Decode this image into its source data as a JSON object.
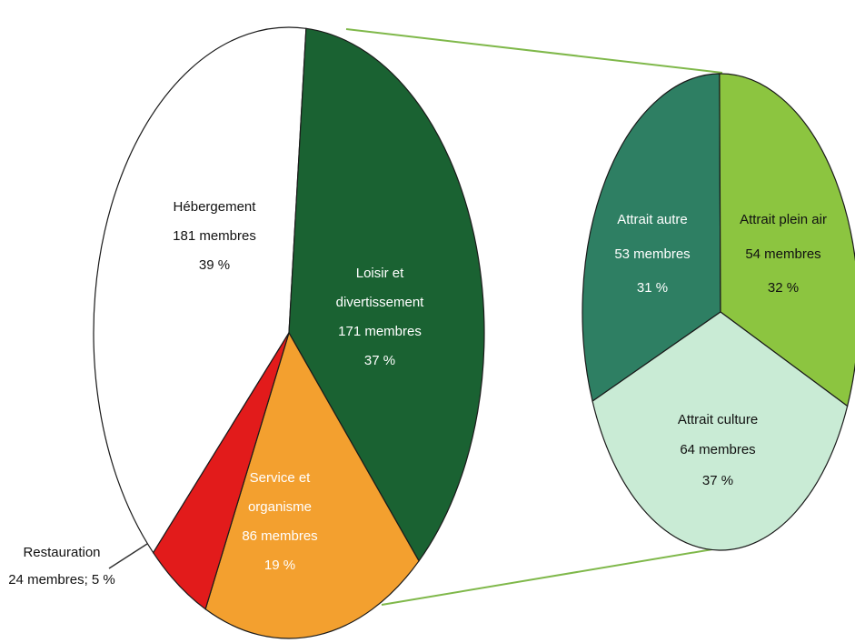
{
  "chart_data": [
    {
      "type": "pie",
      "title": "",
      "slices": [
        {
          "label": "Hébergement",
          "members": "181 membres",
          "percent": "39 %",
          "value": 181,
          "color": "#ffffff",
          "text_color": "#111111"
        },
        {
          "label": "Loisir et divertissement",
          "members": "171 membres",
          "percent": "37 %",
          "value": 171,
          "color": "#1a6232",
          "text_color": "#ffffff"
        },
        {
          "label": "Service et organisme",
          "members": "86 membres",
          "percent": "19 %",
          "value": 86,
          "color": "#f3a02f",
          "text_color": "#ffffff"
        },
        {
          "label": "Restauration",
          "members": "24 membres; 5 %",
          "percent": "5 %",
          "value": 24,
          "color": "#e21b1b",
          "text_color": "#111111"
        }
      ]
    },
    {
      "type": "pie",
      "title": "",
      "breakdown_of": "Loisir et divertissement",
      "slices": [
        {
          "label": "Attrait autre",
          "members": "53 membres",
          "percent": "31 %",
          "value": 53,
          "color": "#2e7f63",
          "text_color": "#ffffff"
        },
        {
          "label": "Attrait plein air",
          "members": "54 membres",
          "percent": "32 %",
          "value": 54,
          "color": "#8cc540",
          "text_color": "#111111"
        },
        {
          "label": "Attrait culture",
          "members": "64 membres",
          "percent": "37 %",
          "value": 64,
          "color": "#c9ebd5",
          "text_color": "#111111"
        }
      ]
    }
  ],
  "connector_color": "#7fb84a",
  "outline_color": "#1a1a1a"
}
